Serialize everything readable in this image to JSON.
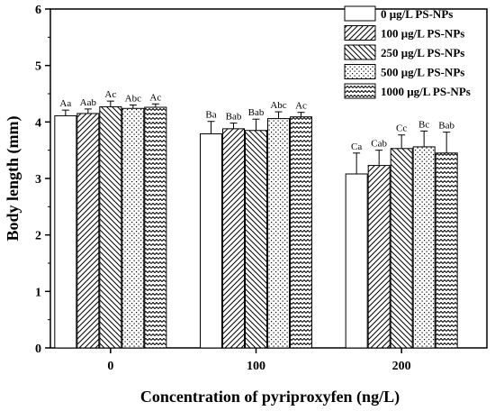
{
  "chart_data": {
    "type": "bar",
    "xlabel": "Concentration of pyriproxyfen (ng/L)",
    "ylabel": "Body length (mm)",
    "categories": [
      "0",
      "100",
      "200"
    ],
    "ylim": [
      0,
      6
    ],
    "yticks": [
      0,
      1,
      2,
      3,
      4,
      5,
      6
    ],
    "legend_position": "top-right",
    "series": [
      {
        "name": "0 μg/L PS-NPs",
        "pattern": "none",
        "values": [
          4.11,
          3.79,
          3.08
        ],
        "errors": [
          0.1,
          0.22,
          0.37
        ],
        "labels": [
          "Aa",
          "Ba",
          "Ca"
        ]
      },
      {
        "name": "100 μg/L PS-NPs",
        "pattern": "diag-fwd",
        "values": [
          4.15,
          3.88,
          3.23
        ],
        "errors": [
          0.08,
          0.1,
          0.27
        ],
        "labels": [
          "Aab",
          "Bab",
          "Cab"
        ]
      },
      {
        "name": "250 μg/L PS-NPs",
        "pattern": "diag-back",
        "values": [
          4.27,
          3.85,
          3.53
        ],
        "errors": [
          0.1,
          0.2,
          0.24
        ],
        "labels": [
          "Ac",
          "Bab",
          "Cc"
        ]
      },
      {
        "name": "500 μg/L PS-NPs",
        "pattern": "dots",
        "values": [
          4.24,
          4.06,
          3.56
        ],
        "errors": [
          0.06,
          0.12,
          0.28
        ],
        "labels": [
          "Abc",
          "Abc",
          "Bc"
        ]
      },
      {
        "name": "1000 μg/L PS-NPs",
        "pattern": "zigzag",
        "values": [
          4.26,
          4.09,
          3.45
        ],
        "errors": [
          0.06,
          0.08,
          0.37
        ],
        "labels": [
          "Ac",
          "Ac",
          "Bab"
        ]
      }
    ]
  }
}
